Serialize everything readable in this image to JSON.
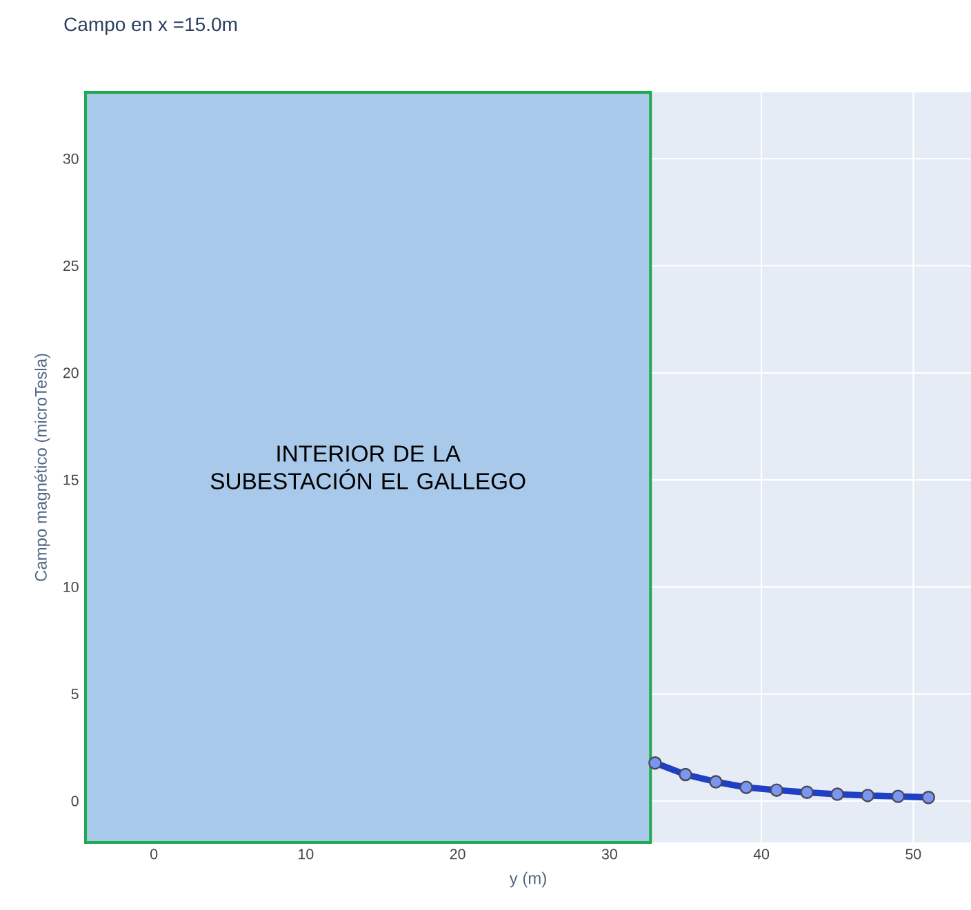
{
  "chart_data": {
    "type": "line",
    "title": "Campo en x =15.0m",
    "xlabel": "y (m)",
    "ylabel": "Campo magnético (microTesla)",
    "x": [
      33,
      35,
      37,
      39,
      41,
      43,
      45,
      47,
      49,
      51
    ],
    "series": [
      {
        "color": "#1f3fc4",
        "values": [
          1.78,
          1.24,
          0.9,
          0.64,
          0.51,
          0.41,
          0.32,
          0.26,
          0.22,
          0.17
        ]
      }
    ],
    "xlim": [
      -4.5,
      53.8
    ],
    "ylim": [
      -1.93,
      33.1
    ],
    "xticks": [
      0,
      10,
      20,
      30,
      40,
      50
    ],
    "yticks": [
      0,
      5,
      10,
      15,
      20,
      25,
      30
    ],
    "grid": true,
    "marker": "circle",
    "line_style": "solid",
    "bands": [
      {
        "axis": "x",
        "from": -4.5,
        "to": 32.7,
        "label": "INTERIOR DE LA SUBESTACIÓN EL GALLEGO",
        "color": "#a9c9ea"
      }
    ]
  }
}
